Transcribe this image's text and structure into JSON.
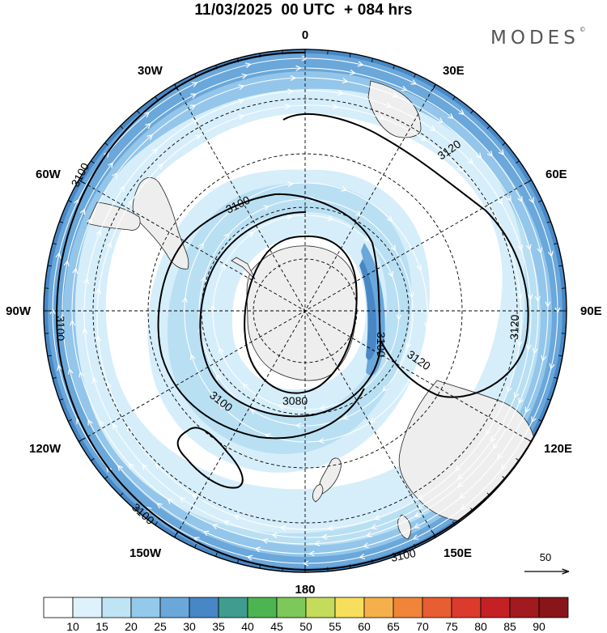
{
  "title": "11/03/2025  00 UTC  + 084 hrs",
  "logo": "MODES",
  "logo_mark": "©",
  "map": {
    "projection": "south polar stereographic",
    "longitude_labels": {
      "top": "0",
      "right": "90E",
      "bottom": "180",
      "left": "90W",
      "upper_right": "30E",
      "mid_upper_right": "60E",
      "mid_lower_right": "120E",
      "lower_right": "150E",
      "upper_left": "30W",
      "mid_upper_left": "60W",
      "mid_lower_left": "120W",
      "lower_left": "150W"
    },
    "contour_labels": [
      "3100",
      "3120",
      "3100",
      "3100",
      "3100",
      "3080",
      "3120",
      "3100",
      "3100",
      "3100",
      "3120"
    ],
    "reference_vector": "50",
    "colors": {
      "land": "#eeeeee",
      "band_15": "#d6eefa",
      "band_20": "#b9dff3",
      "band_25": "#93c6ea",
      "band_30": "#6aa7da",
      "band_35": "#4887c6"
    }
  },
  "colorbar": {
    "ticks": [
      "10",
      "15",
      "20",
      "25",
      "30",
      "35",
      "40",
      "45",
      "50",
      "55",
      "60",
      "65",
      "70",
      "75",
      "80",
      "85",
      "90"
    ],
    "colors": [
      "#ffffff",
      "#dff2fb",
      "#bfe4f5",
      "#94c9ea",
      "#6aa8da",
      "#4787c6",
      "#3f9d8f",
      "#4cb552",
      "#7dc85a",
      "#c5db5b",
      "#f7de5c",
      "#f5b04c",
      "#ef8539",
      "#e85d31",
      "#dc3a2c",
      "#c42127",
      "#a01a1f",
      "#871519"
    ]
  }
}
